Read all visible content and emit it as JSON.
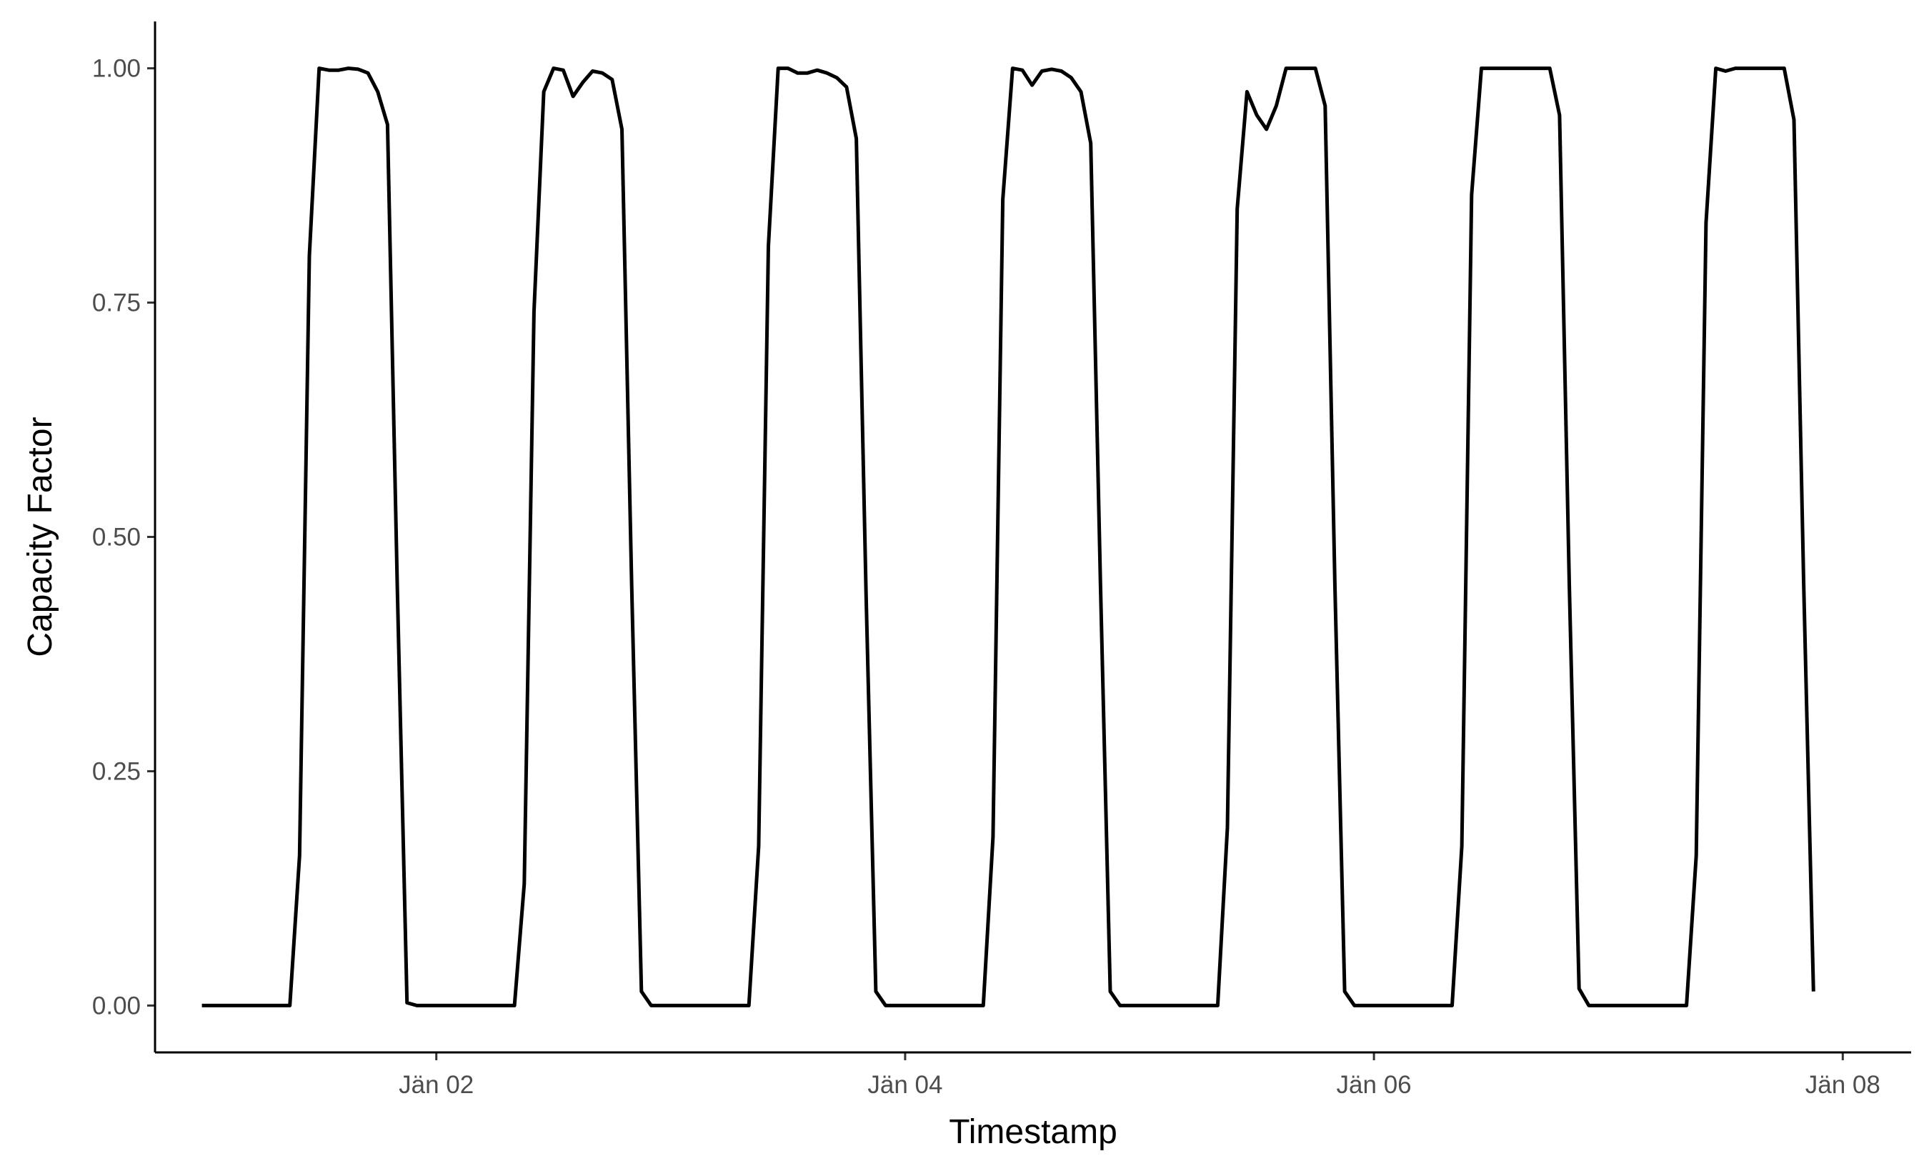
{
  "chart_data": {
    "type": "line",
    "title": "",
    "xlabel": "Timestamp",
    "ylabel": "Capacity Factor",
    "x_unit": "hour",
    "x_start": "Jan 01 00:00",
    "xlim": [
      -4.8,
      175
    ],
    "ylim": [
      -0.05,
      1.05
    ],
    "x_ticks": [
      {
        "x": 24,
        "label": "Jän 02"
      },
      {
        "x": 72,
        "label": "Jän 04"
      },
      {
        "x": 120,
        "label": "Jän 06"
      },
      {
        "x": 168,
        "label": "Jän 08"
      }
    ],
    "y_ticks": [
      {
        "y": 0,
        "label": "0.00"
      },
      {
        "y": 0.25,
        "label": "0.25"
      },
      {
        "y": 0.5,
        "label": "0.50"
      },
      {
        "y": 0.75,
        "label": "0.75"
      },
      {
        "y": 1.0,
        "label": "1.00"
      }
    ],
    "grid": false,
    "legend": "none",
    "series": [
      {
        "color": "#000000",
        "points": [
          [
            0,
            0
          ],
          [
            1,
            0
          ],
          [
            2,
            0
          ],
          [
            3,
            0
          ],
          [
            4,
            0
          ],
          [
            5,
            0
          ],
          [
            6,
            0
          ],
          [
            7,
            0
          ],
          [
            8,
            0
          ],
          [
            9,
            0
          ],
          [
            10,
            0.16
          ],
          [
            11,
            0.8
          ],
          [
            12,
            1.0
          ],
          [
            13,
            0.998
          ],
          [
            14,
            0.998
          ],
          [
            15,
            1.0
          ],
          [
            16,
            0.999
          ],
          [
            17,
            0.995
          ],
          [
            18,
            0.975
          ],
          [
            19,
            0.94
          ],
          [
            20,
            0.45
          ],
          [
            21,
            0.003
          ],
          [
            22,
            0
          ],
          [
            23,
            0
          ],
          [
            24,
            0
          ],
          [
            25,
            0
          ],
          [
            26,
            0
          ],
          [
            27,
            0
          ],
          [
            28,
            0
          ],
          [
            29,
            0
          ],
          [
            30,
            0
          ],
          [
            31,
            0
          ],
          [
            32,
            0
          ],
          [
            33,
            0.13
          ],
          [
            34,
            0.74
          ],
          [
            35,
            0.975
          ],
          [
            36,
            1.0
          ],
          [
            37,
            0.998
          ],
          [
            38,
            0.97
          ],
          [
            39,
            0.985
          ],
          [
            40,
            0.997
          ],
          [
            41,
            0.995
          ],
          [
            42,
            0.988
          ],
          [
            43,
            0.935
          ],
          [
            44,
            0.45
          ],
          [
            45,
            0.015
          ],
          [
            46,
            0
          ],
          [
            47,
            0
          ],
          [
            48,
            0
          ],
          [
            49,
            0
          ],
          [
            50,
            0
          ],
          [
            51,
            0
          ],
          [
            52,
            0
          ],
          [
            53,
            0
          ],
          [
            54,
            0
          ],
          [
            55,
            0
          ],
          [
            56,
            0
          ],
          [
            57,
            0.17
          ],
          [
            58,
            0.81
          ],
          [
            59,
            1.0
          ],
          [
            60,
            1.0
          ],
          [
            61,
            0.995
          ],
          [
            62,
            0.995
          ],
          [
            63,
            0.998
          ],
          [
            64,
            0.995
          ],
          [
            65,
            0.99
          ],
          [
            66,
            0.98
          ],
          [
            67,
            0.925
          ],
          [
            68,
            0.44
          ],
          [
            69,
            0.015
          ],
          [
            70,
            0
          ],
          [
            71,
            0
          ],
          [
            72,
            0
          ],
          [
            73,
            0
          ],
          [
            74,
            0
          ],
          [
            75,
            0
          ],
          [
            76,
            0
          ],
          [
            77,
            0
          ],
          [
            78,
            0
          ],
          [
            79,
            0
          ],
          [
            80,
            0
          ],
          [
            81,
            0.18
          ],
          [
            82,
            0.86
          ],
          [
            83,
            1.0
          ],
          [
            84,
            0.998
          ],
          [
            85,
            0.982
          ],
          [
            86,
            0.997
          ],
          [
            87,
            0.999
          ],
          [
            88,
            0.997
          ],
          [
            89,
            0.99
          ],
          [
            90,
            0.975
          ],
          [
            91,
            0.92
          ],
          [
            92,
            0.45
          ],
          [
            93,
            0.015
          ],
          [
            94,
            0
          ],
          [
            95,
            0
          ],
          [
            96,
            0
          ],
          [
            97,
            0
          ],
          [
            98,
            0
          ],
          [
            99,
            0
          ],
          [
            100,
            0
          ],
          [
            101,
            0
          ],
          [
            102,
            0
          ],
          [
            103,
            0
          ],
          [
            104,
            0
          ],
          [
            105,
            0.19
          ],
          [
            106,
            0.85
          ],
          [
            107,
            0.975
          ],
          [
            108,
            0.95
          ],
          [
            109,
            0.935
          ],
          [
            110,
            0.96
          ],
          [
            111,
            1.0
          ],
          [
            112,
            1.0
          ],
          [
            113,
            1.0
          ],
          [
            114,
            1.0
          ],
          [
            115,
            0.96
          ],
          [
            116,
            0.45
          ],
          [
            117,
            0.015
          ],
          [
            118,
            0
          ],
          [
            119,
            0
          ],
          [
            120,
            0
          ],
          [
            121,
            0
          ],
          [
            122,
            0
          ],
          [
            123,
            0
          ],
          [
            124,
            0
          ],
          [
            125,
            0
          ],
          [
            126,
            0
          ],
          [
            127,
            0
          ],
          [
            128,
            0
          ],
          [
            129,
            0.17
          ],
          [
            130,
            0.865
          ],
          [
            131,
            1.0
          ],
          [
            132,
            1.0
          ],
          [
            133,
            1.0
          ],
          [
            134,
            1.0
          ],
          [
            135,
            1.0
          ],
          [
            136,
            1.0
          ],
          [
            137,
            1.0
          ],
          [
            138,
            1.0
          ],
          [
            139,
            0.95
          ],
          [
            140,
            0.45
          ],
          [
            141,
            0.018
          ],
          [
            142,
            0
          ],
          [
            143,
            0
          ],
          [
            144,
            0
          ],
          [
            145,
            0
          ],
          [
            146,
            0
          ],
          [
            147,
            0
          ],
          [
            148,
            0
          ],
          [
            149,
            0
          ],
          [
            150,
            0
          ],
          [
            151,
            0
          ],
          [
            152,
            0
          ],
          [
            153,
            0.16
          ],
          [
            154,
            0.835
          ],
          [
            155,
            1.0
          ],
          [
            156,
            0.997
          ],
          [
            157,
            1.0
          ],
          [
            158,
            1.0
          ],
          [
            159,
            1.0
          ],
          [
            160,
            1.0
          ],
          [
            161,
            1.0
          ],
          [
            162,
            1.0
          ],
          [
            163,
            0.945
          ],
          [
            164,
            0.45
          ],
          [
            165,
            0.015
          ]
        ]
      }
    ]
  }
}
